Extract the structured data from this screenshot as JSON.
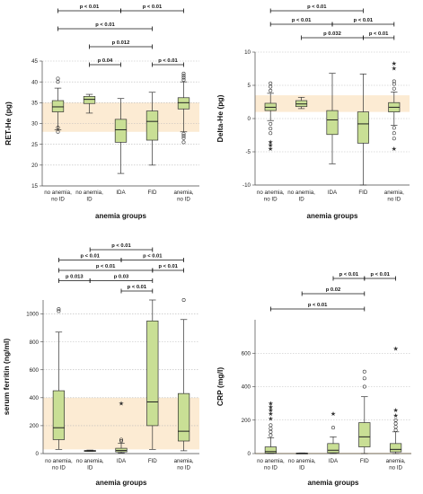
{
  "chart_data": [
    {
      "type": "box",
      "ylabel": "RET-He (pg)",
      "xlabel": "anemia groups",
      "ylim": [
        15,
        45
      ],
      "yticks": [
        15,
        20,
        25,
        30,
        35,
        40,
        45
      ],
      "reference_band": [
        28,
        35
      ],
      "categories": [
        [
          "no anemia,",
          "no ID"
        ],
        [
          "no anemia,",
          "ID"
        ],
        [
          "IDA"
        ],
        [
          "FID"
        ],
        [
          "anemia,",
          "no ID"
        ]
      ],
      "boxes": [
        {
          "whisker_low": 28.5,
          "q1": 32.8,
          "median": 34.0,
          "q3": 35.5,
          "whisker_high": 38.5,
          "outliers_circle": [
            28.0,
            29.0,
            40.0,
            40.8
          ],
          "outliers_star": []
        },
        {
          "whisker_low": 32.5,
          "q1": 34.8,
          "median": 35.8,
          "q3": 36.5,
          "whisker_high": 37.0,
          "outliers_circle": [],
          "outliers_star": []
        },
        {
          "whisker_low": 18.0,
          "q1": 25.5,
          "median": 28.5,
          "q3": 31.0,
          "whisker_high": 36.0,
          "outliers_circle": [],
          "outliers_star": []
        },
        {
          "whisker_low": 20.0,
          "q1": 26.0,
          "median": 30.5,
          "q3": 33.0,
          "whisker_high": 37.5,
          "outliers_circle": [],
          "outliers_star": []
        },
        {
          "whisker_low": 28.0,
          "q1": 33.5,
          "median": 35.0,
          "q3": 36.2,
          "whisker_high": 40.0,
          "outliers_circle": [
            25.5,
            26.5,
            27.0,
            27.5,
            40.5,
            41.0,
            41.5,
            42.0
          ],
          "outliers_star": []
        }
      ],
      "comparisons": [
        {
          "from": 0,
          "to": 2,
          "label": "p < 0.01",
          "level": 0
        },
        {
          "from": 2,
          "to": 4,
          "label": "p < 0.01",
          "level": 0
        },
        {
          "from": 0,
          "to": 3,
          "label": "p < 0.01",
          "level": 1
        },
        {
          "from": 1,
          "to": 3,
          "label": "p 0.012",
          "level": 2
        },
        {
          "from": 1,
          "to": 2,
          "label": "p 0.04",
          "level": 3
        },
        {
          "from": 3,
          "to": 4,
          "label": "p < 0.01",
          "level": 3
        }
      ]
    },
    {
      "type": "box",
      "ylabel": "Delta-He (pg)",
      "xlabel": "anemia groups",
      "ylim": [
        -10,
        10
      ],
      "yticks": [
        -10,
        -5,
        0,
        5,
        10
      ],
      "reference_band": [
        1,
        3.5
      ],
      "categories": [
        [
          "no anemia,",
          "no ID"
        ],
        [
          "no anemia,",
          "ID"
        ],
        [
          "IDA"
        ],
        [
          "FID"
        ],
        [
          "anemia,",
          "no ID"
        ]
      ],
      "boxes": [
        {
          "whisker_low": -0.3,
          "q1": 1.2,
          "median": 1.7,
          "q3": 2.3,
          "whisker_high": 3.8,
          "outliers_circle": [
            -0.8,
            -1.5,
            -2.2,
            4.2,
            4.8,
            5.3
          ],
          "outliers_star": [
            -3.5,
            -4.5,
            -4.0
          ]
        },
        {
          "whisker_low": 1.5,
          "q1": 1.8,
          "median": 2.2,
          "q3": 2.7,
          "whisker_high": 3.2,
          "outliers_circle": [],
          "outliers_star": []
        },
        {
          "whisker_low": -6.8,
          "q1": -2.4,
          "median": -0.2,
          "q3": 1.2,
          "whisker_high": 6.8,
          "outliers_circle": [],
          "outliers_star": []
        },
        {
          "whisker_low": -10.0,
          "q1": -3.7,
          "median": -0.8,
          "q3": 1.0,
          "whisker_high": 6.7,
          "outliers_circle": [],
          "outliers_star": []
        },
        {
          "whisker_low": -1.0,
          "q1": 1.0,
          "median": 1.7,
          "q3": 2.4,
          "whisker_high": 4.0,
          "outliers_circle": [
            -1.4,
            -2.2,
            -3.0,
            4.5,
            5.2,
            5.6
          ],
          "outliers_star": [
            -4.5,
            7.6,
            8.3
          ]
        }
      ],
      "comparisons": [
        {
          "from": 0,
          "to": 3,
          "label": "p < 0.01",
          "level": 0
        },
        {
          "from": 0,
          "to": 2,
          "label": "p < 0.01",
          "level": 1
        },
        {
          "from": 2,
          "to": 4,
          "label": "p < 0.01",
          "level": 1
        },
        {
          "from": 1,
          "to": 3,
          "label": "p 0.032",
          "level": 2
        },
        {
          "from": 3,
          "to": 4,
          "label": "p < 0.01",
          "level": 2
        }
      ]
    },
    {
      "type": "box",
      "ylabel": "serum ferritin (ng/ml)",
      "xlabel": "anemia groups",
      "ylim": [
        0,
        1100
      ],
      "yticks": [
        0,
        200,
        400,
        600,
        800,
        1000
      ],
      "reference_band": [
        30,
        400
      ],
      "categories": [
        [
          "no anemia,",
          "no ID"
        ],
        [
          "no anemia,",
          "ID"
        ],
        [
          "IDA"
        ],
        [
          "FID"
        ],
        [
          "anemia,",
          "no ID"
        ]
      ],
      "boxes": [
        {
          "whisker_low": 30,
          "q1": 100,
          "median": 185,
          "q3": 450,
          "whisker_high": 870,
          "outliers_circle": [
            1020,
            1035
          ],
          "outliers_star": []
        },
        {
          "whisker_low": 15,
          "q1": 18,
          "median": 20,
          "q3": 22,
          "whisker_high": 25,
          "outliers_circle": [],
          "outliers_star": []
        },
        {
          "whisker_low": 5,
          "q1": 12,
          "median": 22,
          "q3": 38,
          "whisker_high": 75,
          "outliers_circle": [
            90,
            100
          ],
          "outliers_star": [
            360
          ]
        },
        {
          "whisker_low": 30,
          "q1": 200,
          "median": 370,
          "q3": 950,
          "whisker_high": 1100,
          "outliers_circle": [],
          "outliers_star": []
        },
        {
          "whisker_low": 20,
          "q1": 90,
          "median": 160,
          "q3": 430,
          "whisker_high": 960,
          "outliers_circle": [
            1100
          ],
          "outliers_star": []
        }
      ],
      "comparisons": [
        {
          "from": 1,
          "to": 3,
          "label": "p < 0.01",
          "level": 0
        },
        {
          "from": 0,
          "to": 2,
          "label": "p < 0.01",
          "level": 1
        },
        {
          "from": 2,
          "to": 4,
          "label": "p < 0.01",
          "level": 1
        },
        {
          "from": 0,
          "to": 3,
          "label": "p < 0.01",
          "level": 2
        },
        {
          "from": 3,
          "to": 4,
          "label": "p < 0.01",
          "level": 2
        },
        {
          "from": 0,
          "to": 1,
          "label": "p 0.013",
          "level": 3
        },
        {
          "from": 1,
          "to": 3,
          "label": "p 0.03",
          "level": 3
        },
        {
          "from": 2,
          "to": 3,
          "label": "p < 0.01",
          "level": 4
        }
      ]
    },
    {
      "type": "box",
      "ylabel": "CRP (mg/l)",
      "xlabel": "anemia groups",
      "ylim": [
        0,
        800
      ],
      "yticks": [
        0,
        200,
        400,
        600
      ],
      "reference_band": [
        0,
        5
      ],
      "categories": [
        [
          "no anemia,",
          "no ID"
        ],
        [
          "no anemia,",
          "ID"
        ],
        [
          "IDA"
        ],
        [
          "FID"
        ],
        [
          "anemia,",
          "no ID"
        ]
      ],
      "boxes": [
        {
          "whisker_low": 0,
          "q1": 3,
          "median": 12,
          "q3": 40,
          "whisker_high": 95,
          "outliers_circle": [
            110,
            130,
            150,
            170
          ],
          "outliers_star": [
            210,
            240,
            260,
            280,
            300
          ]
        },
        {
          "whisker_low": 0,
          "q1": 1,
          "median": 2,
          "q3": 3,
          "whisker_high": 4,
          "outliers_circle": [],
          "outliers_star": []
        },
        {
          "whisker_low": 0,
          "q1": 5,
          "median": 20,
          "q3": 60,
          "whisker_high": 100,
          "outliers_circle": [
            155
          ],
          "outliers_star": [
            240
          ]
        },
        {
          "whisker_low": 0,
          "q1": 40,
          "median": 100,
          "q3": 185,
          "whisker_high": 340,
          "outliers_circle": [
            400,
            450,
            490
          ],
          "outliers_star": []
        },
        {
          "whisker_low": 0,
          "q1": 10,
          "median": 25,
          "q3": 60,
          "whisker_high": 130,
          "outliers_circle": [
            140,
            160,
            180,
            200
          ],
          "outliers_star": [
            230,
            260,
            630
          ]
        }
      ],
      "comparisons": [
        {
          "from": 2,
          "to": 3,
          "label": "p < 0.01",
          "level": 0
        },
        {
          "from": 3,
          "to": 4,
          "label": "p < 0.01",
          "level": 0
        },
        {
          "from": 1,
          "to": 3,
          "label": "p 0.02",
          "level": 1
        },
        {
          "from": 0,
          "to": 3,
          "label": "p < 0.01",
          "level": 2
        }
      ]
    }
  ]
}
